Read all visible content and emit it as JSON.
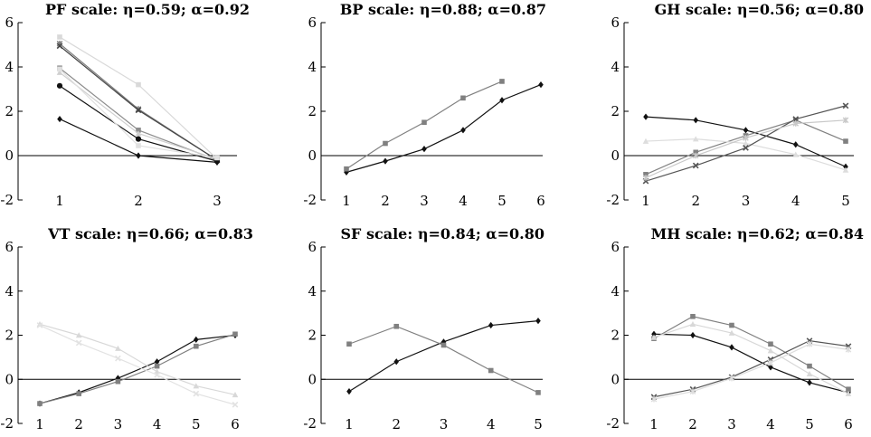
{
  "chart_data": [
    {
      "type": "line",
      "title": "PF scale: η=0.59; α=0.92",
      "categories": [
        "1",
        "2",
        "3"
      ],
      "ylim": [
        -2,
        6
      ],
      "yticks": [
        "-2",
        "0",
        "2",
        "4",
        "6"
      ],
      "xlabel": "",
      "ylabel": "",
      "grid": false,
      "legend": "none",
      "series": [
        {
          "values": [
            5.35,
            3.2,
            -0.15
          ],
          "color": "#d9d9d9",
          "marker": "square"
        },
        {
          "values": [
            5.05,
            2.1,
            -0.2
          ],
          "color": "#7a7a7a",
          "marker": "star"
        },
        {
          "values": [
            4.95,
            2.05,
            -0.2
          ],
          "color": "#444444",
          "marker": "cross"
        },
        {
          "values": [
            3.95,
            1.15,
            -0.2
          ],
          "color": "#8c8c8c",
          "marker": "square"
        },
        {
          "values": [
            3.75,
            1.0,
            -0.15
          ],
          "color": "#d0d0d0",
          "marker": "triangle"
        },
        {
          "values": [
            3.15,
            0.75,
            -0.25
          ],
          "color": "#111111",
          "marker": "circle"
        },
        {
          "values": [
            1.65,
            0.0,
            -0.3
          ],
          "color": "#111111",
          "marker": "diamond"
        },
        {
          "values": [
            3.9,
            0.45,
            -0.1
          ],
          "color": "#e0e0e0",
          "marker": "square"
        }
      ]
    },
    {
      "type": "line",
      "title": "BP scale: η=0.88; α=0.87",
      "categories": [
        "1",
        "2",
        "3",
        "4",
        "5",
        "6"
      ],
      "ylim": [
        -2,
        6
      ],
      "yticks": [
        "-2",
        "0",
        "2",
        "4",
        "6"
      ],
      "xlabel": "",
      "ylabel": "",
      "grid": false,
      "legend": "none",
      "series": [
        {
          "values": [
            -0.75,
            -0.25,
            0.3,
            1.15,
            2.5,
            3.2
          ],
          "color": "#111111",
          "marker": "diamond"
        },
        {
          "values": [
            -0.6,
            0.55,
            1.5,
            2.6,
            3.35,
            null
          ],
          "color": "#808080",
          "marker": "square"
        }
      ]
    },
    {
      "type": "line",
      "title": "GH scale: η=0.56; α=0.80",
      "categories": [
        "1",
        "2",
        "3",
        "4",
        "5"
      ],
      "ylim": [
        -2,
        6
      ],
      "yticks": [
        "-2",
        "0",
        "2",
        "4",
        "6"
      ],
      "xlabel": "",
      "ylabel": "",
      "grid": false,
      "legend": "none",
      "series": [
        {
          "values": [
            1.75,
            1.6,
            1.15,
            0.5,
            -0.5
          ],
          "color": "#111111",
          "marker": "diamond"
        },
        {
          "values": [
            -0.85,
            0.15,
            0.9,
            1.6,
            0.65
          ],
          "color": "#808080",
          "marker": "square"
        },
        {
          "values": [
            0.65,
            0.75,
            0.55,
            0.05,
            -0.65
          ],
          "color": "#dddddd",
          "marker": "triangle"
        },
        {
          "values": [
            -1.15,
            -0.45,
            0.35,
            1.65,
            2.25
          ],
          "color": "#555555",
          "marker": "cross"
        },
        {
          "values": [
            -1.0,
            0.0,
            0.8,
            1.45,
            1.6
          ],
          "color": "#c8c8c8",
          "marker": "star"
        }
      ]
    },
    {
      "type": "line",
      "title": "VT scale: η=0.66; α=0.83",
      "categories": [
        "1",
        "2",
        "3",
        "4",
        "5",
        "6"
      ],
      "ylim": [
        -2,
        6
      ],
      "yticks": [
        "-2",
        "0",
        "2",
        "4",
        "6"
      ],
      "xlabel": "",
      "ylabel": "",
      "grid": false,
      "legend": "none",
      "series": [
        {
          "values": [
            -1.1,
            -0.6,
            0.05,
            0.8,
            1.8,
            2.0
          ],
          "color": "#111111",
          "marker": "diamond"
        },
        {
          "values": [
            -1.1,
            -0.65,
            -0.1,
            0.6,
            1.5,
            2.05
          ],
          "color": "#808080",
          "marker": "square"
        },
        {
          "values": [
            2.5,
            2.0,
            1.4,
            0.35,
            -0.3,
            -0.7
          ],
          "color": "#d8d8d8",
          "marker": "triangle"
        },
        {
          "values": [
            2.45,
            1.65,
            0.95,
            0.2,
            -0.65,
            -1.15
          ],
          "color": "#e2e2e2",
          "marker": "cross"
        }
      ]
    },
    {
      "type": "line",
      "title": "SF scale: η=0.84; α=0.80",
      "categories": [
        "1",
        "2",
        "3",
        "4",
        "5"
      ],
      "ylim": [
        -2,
        6
      ],
      "yticks": [
        "-2",
        "0",
        "2",
        "4",
        "6"
      ],
      "xlabel": "",
      "ylabel": "",
      "grid": false,
      "legend": "none",
      "series": [
        {
          "values": [
            -0.55,
            0.8,
            1.7,
            2.45,
            2.65
          ],
          "color": "#111111",
          "marker": "diamond"
        },
        {
          "values": [
            1.6,
            2.4,
            1.55,
            0.4,
            -0.6
          ],
          "color": "#808080",
          "marker": "square"
        }
      ]
    },
    {
      "type": "line",
      "title": "MH scale: η=0.62; α=0.84",
      "categories": [
        "1",
        "2",
        "3",
        "4",
        "5",
        "6"
      ],
      "ylim": [
        -2,
        6
      ],
      "yticks": [
        "-2",
        "0",
        "2",
        "4",
        "6"
      ],
      "xlabel": "",
      "ylabel": "",
      "grid": false,
      "legend": "none",
      "series": [
        {
          "values": [
            2.05,
            2.0,
            1.45,
            0.55,
            -0.15,
            -0.6
          ],
          "color": "#111111",
          "marker": "diamond"
        },
        {
          "values": [
            1.85,
            2.85,
            2.45,
            1.6,
            0.6,
            -0.45
          ],
          "color": "#808080",
          "marker": "square"
        },
        {
          "values": [
            1.9,
            2.5,
            2.1,
            1.3,
            0.25,
            -0.65
          ],
          "color": "#d8d8d8",
          "marker": "triangle"
        },
        {
          "values": [
            -0.8,
            -0.45,
            0.1,
            0.9,
            1.75,
            1.5
          ],
          "color": "#555555",
          "marker": "cross"
        },
        {
          "values": [
            -0.9,
            -0.55,
            0.05,
            0.75,
            1.6,
            1.35
          ],
          "color": "#dddddd",
          "marker": "star"
        }
      ]
    }
  ]
}
